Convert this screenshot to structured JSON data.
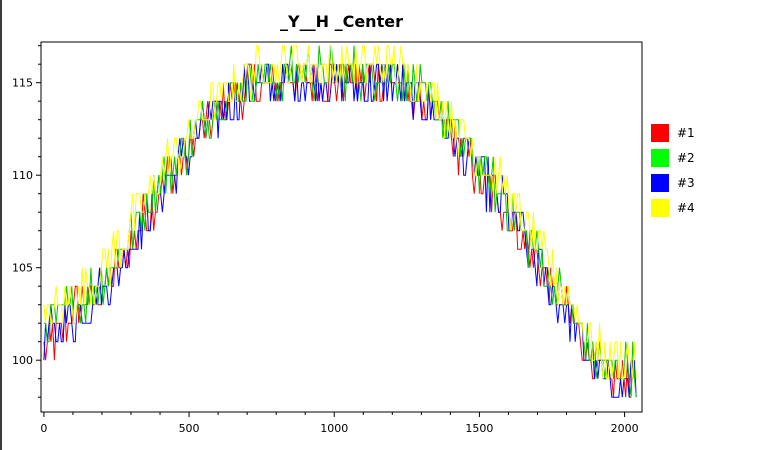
{
  "chart_data": {
    "type": "line",
    "title": "_Y__H _Center",
    "xlabel": "",
    "ylabel": "",
    "xlim": [
      -10,
      2060
    ],
    "ylim": [
      97.2,
      117.2
    ],
    "x_ticks": [
      0,
      500,
      1000,
      1500,
      2000
    ],
    "y_ticks": [
      100,
      105,
      110,
      115
    ],
    "legend_position": "right",
    "grid": false,
    "x": [
      0,
      50,
      100,
      150,
      200,
      250,
      300,
      350,
      400,
      450,
      500,
      550,
      600,
      650,
      700,
      750,
      800,
      850,
      900,
      950,
      1000,
      1050,
      1100,
      1150,
      1200,
      1250,
      1300,
      1350,
      1400,
      1450,
      1500,
      1550,
      1600,
      1650,
      1700,
      1750,
      1800,
      1850,
      1900,
      1950,
      2000,
      2040
    ],
    "series": [
      {
        "name": "#1",
        "color": "#ff0000",
        "values": [
          100.5,
          101.5,
          102.5,
          103.2,
          103.8,
          104.8,
          106.2,
          107.8,
          109.2,
          110.3,
          111.3,
          112.5,
          113.4,
          114.2,
          114.8,
          115.0,
          114.8,
          115.2,
          115.3,
          115.1,
          115.0,
          115.2,
          115.0,
          115.1,
          115.2,
          114.6,
          114.0,
          113.2,
          112.2,
          111.0,
          110.0,
          109.0,
          107.8,
          106.5,
          105.2,
          103.8,
          102.6,
          101.2,
          99.6,
          98.8,
          99.2,
          99.2
        ]
      },
      {
        "name": "#2",
        "color": "#00c800",
        "values": [
          101.5,
          102.3,
          102.8,
          103.5,
          104.3,
          105.4,
          106.8,
          108.3,
          109.7,
          110.6,
          111.7,
          112.9,
          113.8,
          114.5,
          115.0,
          115.3,
          115.2,
          115.6,
          115.7,
          115.5,
          115.4,
          115.6,
          115.4,
          115.5,
          115.6,
          115.0,
          114.5,
          113.6,
          112.6,
          111.5,
          110.5,
          109.5,
          108.3,
          107.0,
          105.7,
          104.3,
          103.0,
          101.6,
          100.1,
          99.4,
          99.7,
          99.5
        ]
      },
      {
        "name": "#3",
        "color": "#0000ff",
        "values": [
          101.0,
          101.8,
          102.3,
          103.0,
          103.8,
          104.8,
          106.3,
          107.8,
          109.3,
          110.2,
          111.3,
          112.5,
          113.3,
          114.1,
          114.7,
          115.0,
          114.8,
          115.0,
          115.1,
          115.0,
          114.9,
          115.0,
          114.8,
          115.0,
          115.1,
          114.5,
          114.0,
          113.2,
          112.2,
          111.0,
          110.0,
          109.1,
          107.9,
          106.6,
          105.2,
          103.9,
          102.6,
          101.2,
          99.5,
          98.3,
          98.9,
          99.0
        ]
      },
      {
        "name": "#4",
        "color": "#ffff00",
        "values": [
          102.0,
          102.8,
          103.3,
          104.0,
          104.8,
          106.0,
          107.3,
          108.8,
          110.2,
          111.0,
          112.2,
          113.3,
          114.2,
          114.9,
          115.5,
          115.8,
          115.7,
          116.1,
          116.2,
          116.0,
          115.9,
          116.1,
          115.9,
          116.0,
          116.1,
          115.5,
          115.0,
          114.1,
          113.0,
          112.0,
          111.0,
          110.0,
          108.8,
          107.5,
          106.2,
          104.8,
          103.5,
          102.1,
          100.5,
          99.9,
          100.2,
          100.0
        ]
      }
    ]
  }
}
